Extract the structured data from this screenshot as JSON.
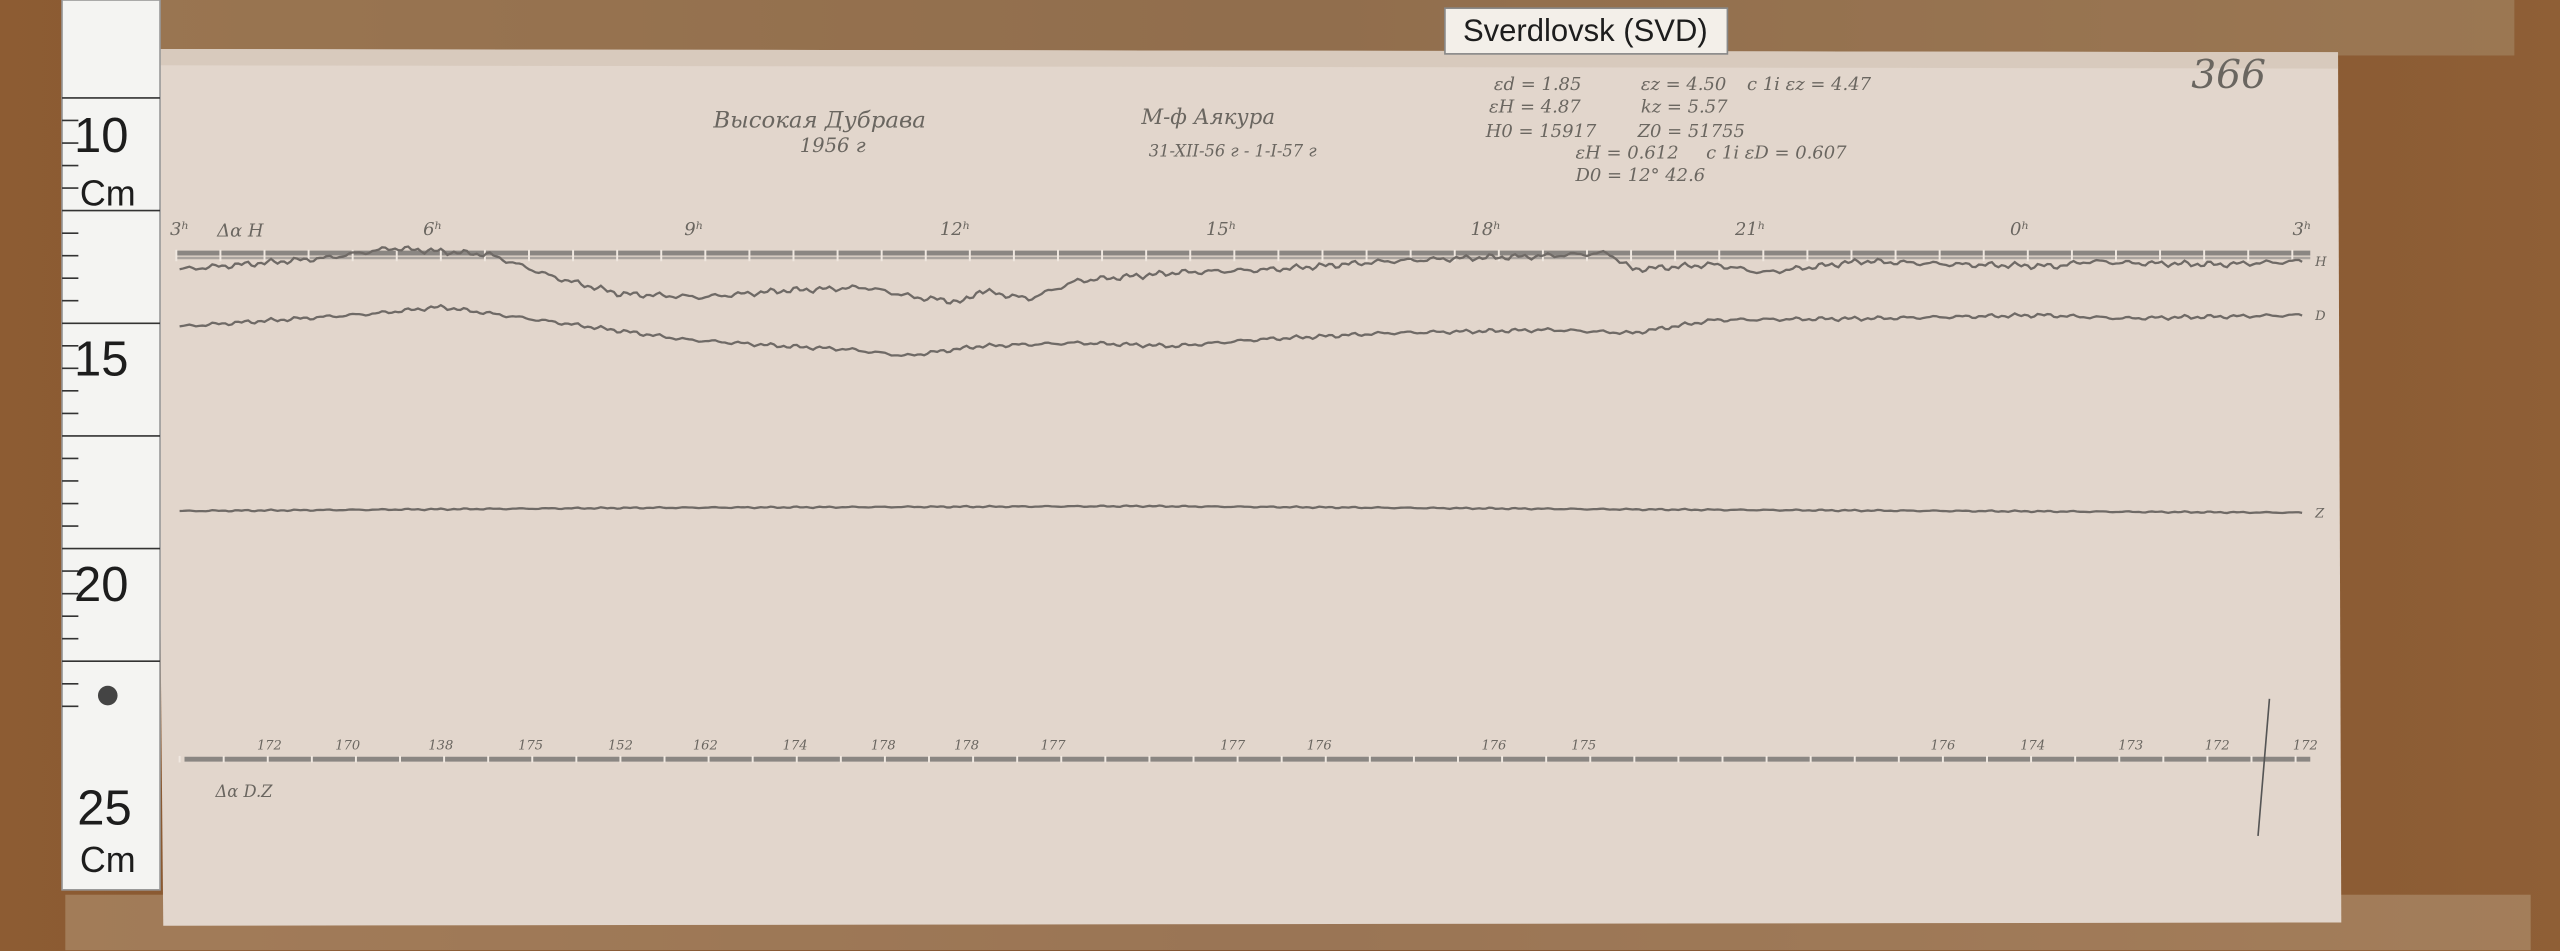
{
  "label": "Sverdlovsk (SVD)",
  "ruler": {
    "labels": [
      "10",
      "Cm",
      "15",
      "20",
      "25",
      "Cm"
    ]
  },
  "sheet": {
    "number": "366",
    "title": "Высокая Дубрава",
    "year": "1956 г",
    "observer": "М-ф Аякура",
    "dates": "31-XII-56 г - 1-I-57 г",
    "constants": [
      "εd = 1.85",
      "εz = 4.50",
      "c 1i  εz = 4.47",
      "εH = 4.87",
      "kz = 5.57",
      "H0 = 15917",
      "Z0 = 51755",
      "εH = 0.612",
      "c 1i  εD = 0.607",
      "D0 = 12° 42.6"
    ],
    "hours": [
      "3ʰ",
      "6ʰ",
      "9ʰ",
      "12ʰ",
      "15ʰ",
      "18ʰ",
      "21ʰ",
      "0ʰ",
      "3ʰ"
    ],
    "trace_label_top": "Δα H",
    "trace_labels": [
      "H",
      "D",
      "Z"
    ],
    "baseline_values": [
      "172",
      "170",
      "138",
      "175",
      "152",
      "162",
      "174",
      "178",
      "178",
      "177",
      "177",
      "176",
      "176",
      "175",
      "176",
      "174",
      "173",
      "172",
      "172"
    ],
    "baseline_label": "Δα D.Z"
  }
}
